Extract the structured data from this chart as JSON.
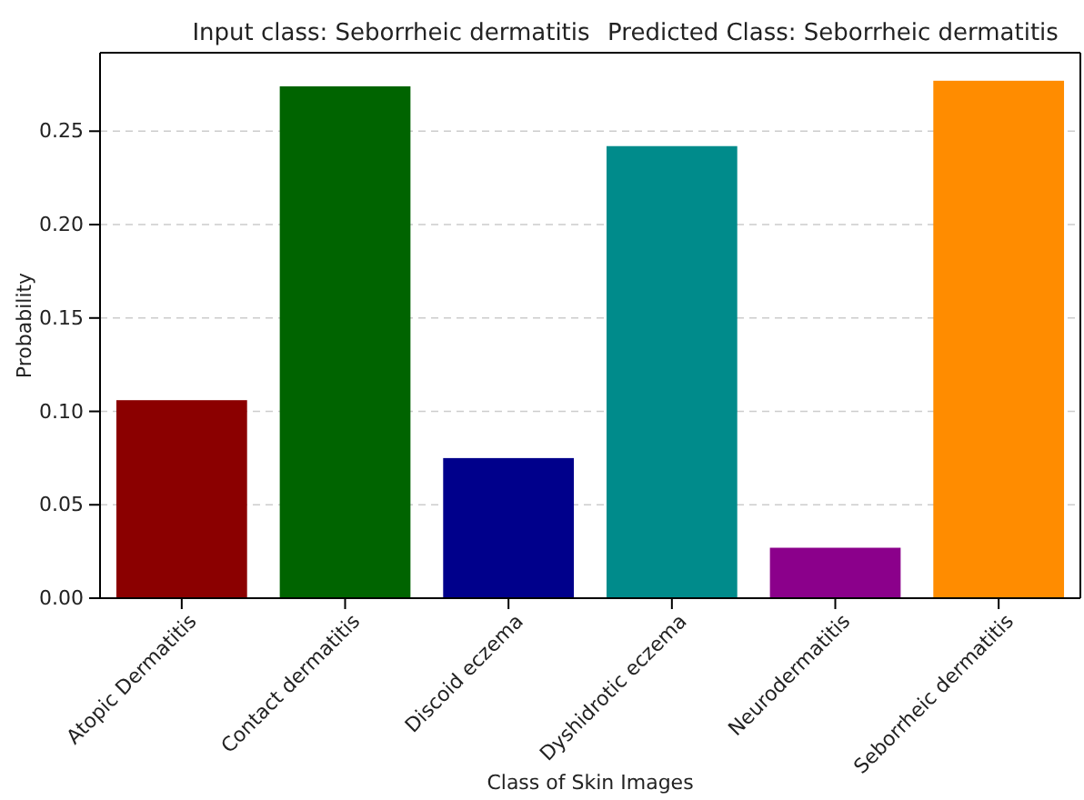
{
  "chart_data": {
    "type": "bar",
    "title": "Input class: Seborrheic dermatitis",
    "subtitle": "Predicted Class: Seborrheic dermatitis",
    "xlabel": "Class of Skin Images",
    "ylabel": "Probability",
    "categories": [
      "Atopic Dermatitis",
      "Contact dermatitis",
      "Discoid eczema",
      "Dyshidrotic eczema",
      "Neurodermatitis",
      "Seborrheic dermatitis"
    ],
    "values": [
      0.106,
      0.274,
      0.075,
      0.242,
      0.027,
      0.277
    ],
    "colors": [
      "#8b0000",
      "#006400",
      "#00008b",
      "#008b8b",
      "#8b008b",
      "#ff8c00"
    ],
    "ylim": [
      0,
      0.292
    ],
    "yticks": [
      {
        "value": 0,
        "label": "0.00"
      },
      {
        "value": 0.05,
        "label": "0.05"
      },
      {
        "value": 0.1,
        "label": "0.10"
      },
      {
        "value": 0.15,
        "label": "0.15"
      },
      {
        "value": 0.2,
        "label": "0.20"
      },
      {
        "value": 0.25,
        "label": "0.25"
      }
    ],
    "grid": "y"
  }
}
